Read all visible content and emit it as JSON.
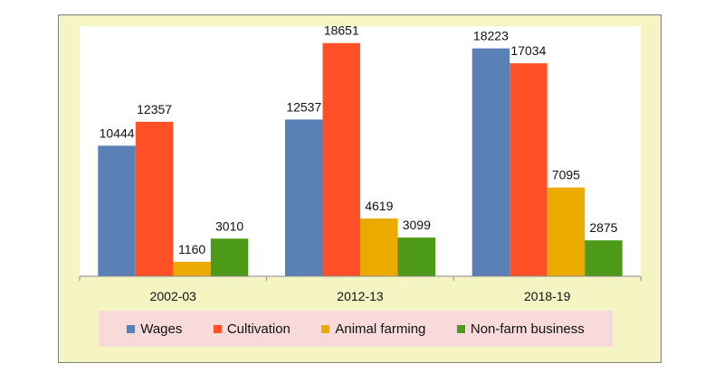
{
  "chart_data": {
    "type": "bar",
    "categories": [
      "2002-03",
      "2012-13",
      "2018-19"
    ],
    "series": [
      {
        "name": "Wages",
        "color": "#5b80b5",
        "values": [
          10444,
          12537,
          18223
        ]
      },
      {
        "name": "Cultivation",
        "color": "#ff5027",
        "values": [
          12357,
          18651,
          17034
        ]
      },
      {
        "name": "Animal farming",
        "color": "#ebaa00",
        "values": [
          1160,
          4619,
          7095
        ]
      },
      {
        "name": "Non-farm business",
        "color": "#4c9a18",
        "values": [
          3010,
          3099,
          2875
        ]
      }
    ],
    "ylim": [
      0,
      20000
    ],
    "grid": false,
    "legend_position": "bottom"
  }
}
